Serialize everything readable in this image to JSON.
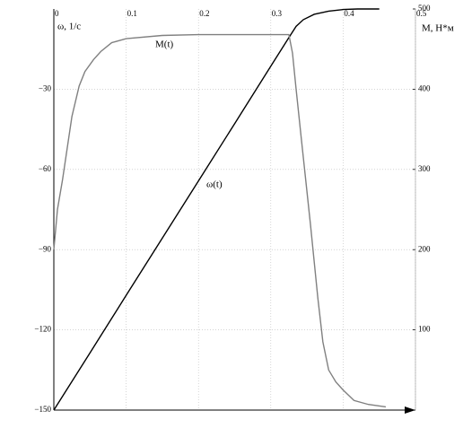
{
  "chart_data": {
    "type": "line",
    "annotations": [
      "M(t)",
      "ω(t)"
    ],
    "y_label": "ω, 1/с",
    "y2_label": "M, Н*м",
    "xlim": [
      0,
      0.5
    ],
    "xticks": [
      0,
      0.1,
      0.2,
      0.3,
      0.4,
      0.5
    ],
    "ylim": [
      -150,
      0
    ],
    "yticks": [
      {
        "value": -150,
        "label": "−150"
      },
      {
        "value": -120,
        "label": "−120"
      },
      {
        "value": -90,
        "label": "−90"
      },
      {
        "value": -60,
        "label": "−60"
      },
      {
        "value": -30,
        "label": "−30"
      }
    ],
    "y2lim": [
      0,
      500
    ],
    "y2ticks": [
      100,
      200,
      300,
      400,
      500
    ],
    "grid": true,
    "series": [
      {
        "name": "ω(t)",
        "color": "#000000",
        "axis": "y",
        "x": [
          0,
          0.05,
          0.1,
          0.15,
          0.2,
          0.25,
          0.3,
          0.325,
          0.335,
          0.345,
          0.36,
          0.38,
          0.4,
          0.42,
          0.45
        ],
        "values": [
          -150,
          -128.6,
          -107.1,
          -85.7,
          -64.3,
          -42.9,
          -21.4,
          -10.7,
          -6.5,
          -4,
          -2,
          -0.8,
          -0.2,
          0,
          0
        ]
      },
      {
        "name": "M(t)",
        "color": "#808080",
        "axis": "y2",
        "x": [
          0,
          0.005,
          0.012,
          0.025,
          0.035,
          0.043,
          0.055,
          0.065,
          0.08,
          0.1,
          0.15,
          0.2,
          0.25,
          0.3,
          0.325,
          0.33,
          0.335,
          0.342,
          0.355,
          0.365,
          0.372,
          0.38,
          0.39,
          0.4,
          0.415,
          0.435,
          0.459
        ],
        "values": [
          200,
          250,
          287,
          366,
          404,
          422,
          437,
          447,
          458,
          463,
          467,
          468,
          468,
          468,
          468,
          445,
          400,
          340,
          230,
          140,
          85,
          50,
          35,
          25,
          12,
          7,
          4
        ]
      }
    ]
  }
}
